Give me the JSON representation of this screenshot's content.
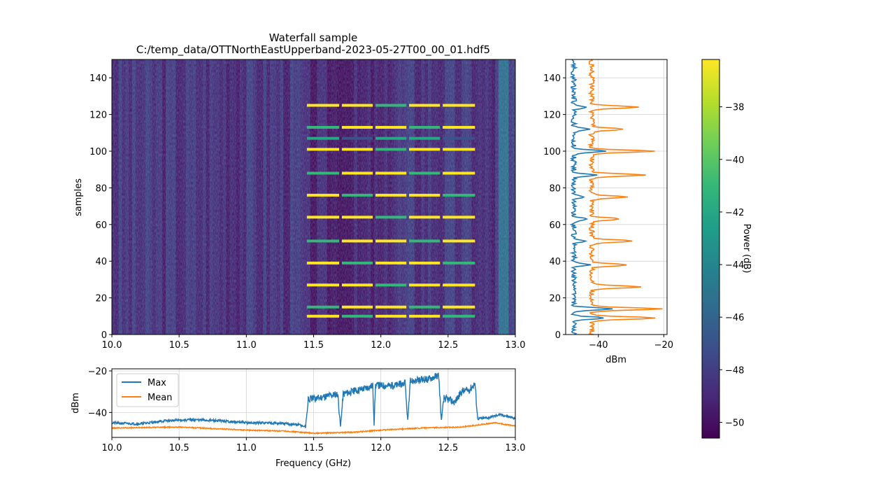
{
  "figure": {
    "title_line1": "Waterfall sample",
    "title_line2": "C:/temp_data/OTTNorthEastUpperband-2023-05-27T00_00_01.hdf5"
  },
  "colors": {
    "max": "#1f77b4",
    "mean": "#ff7f0e",
    "grid": "#d3d3d3",
    "viridis": [
      "#440154",
      "#482878",
      "#3e4a89",
      "#31688e",
      "#26828e",
      "#1f9e89",
      "#35b779",
      "#6ece58",
      "#b5de2b",
      "#fde725"
    ]
  },
  "chart_data": [
    {
      "id": "waterfall",
      "type": "heatmap",
      "xlabel": "",
      "ylabel": "samples",
      "xlim": [
        10.0,
        13.0
      ],
      "ylim": [
        0,
        150
      ],
      "xticks": [
        "10.0",
        "10.5",
        "11.0",
        "11.5",
        "12.0",
        "12.5",
        "13.0"
      ],
      "yticks": [
        "0",
        "20",
        "40",
        "60",
        "80",
        "100",
        "120",
        "140"
      ],
      "background_level_db": -49,
      "signal_band_ghz": [
        11.45,
        12.7
      ],
      "burst_rows": [
        10,
        15,
        27,
        39,
        51,
        64,
        76,
        88,
        101,
        107,
        113,
        125
      ],
      "burst_level_db": -36,
      "edge_band_ghz": [
        12.85,
        12.95
      ],
      "edge_band_level_db": -45
    },
    {
      "id": "sample-profile",
      "type": "line",
      "xlabel": "dBm",
      "ylabel": "",
      "xlim": [
        -50,
        -19
      ],
      "ylim": [
        0,
        150
      ],
      "xticks": [
        "−40",
        "−20"
      ],
      "yticks": [
        "0",
        "20",
        "40",
        "60",
        "80",
        "100",
        "120",
        "140"
      ],
      "grid": true,
      "series": [
        {
          "name": "Max",
          "baseline": -47.5,
          "peaks": [
            [
              9,
              -38
            ],
            [
              14,
              -36
            ],
            [
              26,
              -47
            ],
            [
              38,
              -43
            ],
            [
              51,
              -44
            ],
            [
              63,
              -43
            ],
            [
              75,
              -45
            ],
            [
              87,
              -41
            ],
            [
              100,
              -38
            ],
            [
              112,
              -43
            ],
            [
              124,
              -44
            ]
          ]
        },
        {
          "name": "Mean",
          "baseline": -42,
          "peaks": [
            [
              9,
              -22
            ],
            [
              14,
              -21
            ],
            [
              26,
              -27
            ],
            [
              38,
              -31
            ],
            [
              51,
              -29
            ],
            [
              63,
              -33
            ],
            [
              75,
              -31
            ],
            [
              87,
              -26
            ],
            [
              100,
              -23
            ],
            [
              112,
              -32
            ],
            [
              124,
              -28
            ]
          ]
        }
      ]
    },
    {
      "id": "spectrum",
      "type": "line",
      "xlabel": "Frequency (GHz)",
      "ylabel": "dBm",
      "xlim": [
        10.0,
        13.0
      ],
      "ylim": [
        -52,
        -19
      ],
      "xticks": [
        "10.0",
        "10.5",
        "11.0",
        "11.5",
        "12.0",
        "12.5",
        "13.0"
      ],
      "yticks": [
        "−40",
        "−20"
      ],
      "grid": true,
      "legend_position": "upper-left",
      "series": [
        {
          "name": "Max",
          "points": [
            [
              10.0,
              -45
            ],
            [
              10.2,
              -45.5
            ],
            [
              10.4,
              -44
            ],
            [
              10.6,
              -43.5
            ],
            [
              10.8,
              -44
            ],
            [
              11.0,
              -45
            ],
            [
              11.2,
              -45
            ],
            [
              11.4,
              -46
            ],
            [
              11.44,
              -47
            ],
            [
              11.46,
              -34
            ],
            [
              11.6,
              -32
            ],
            [
              11.68,
              -31
            ],
            [
              11.7,
              -47
            ],
            [
              11.72,
              -31
            ],
            [
              11.9,
              -28
            ],
            [
              11.94,
              -27
            ],
            [
              11.95,
              -46
            ],
            [
              11.96,
              -27
            ],
            [
              12.1,
              -27
            ],
            [
              12.18,
              -26
            ],
            [
              12.2,
              -44
            ],
            [
              12.22,
              -25
            ],
            [
              12.35,
              -24
            ],
            [
              12.43,
              -22
            ],
            [
              12.45,
              -44
            ],
            [
              12.47,
              -33
            ],
            [
              12.55,
              -35
            ],
            [
              12.6,
              -30
            ],
            [
              12.66,
              -29
            ],
            [
              12.7,
              -26
            ],
            [
              12.72,
              -43
            ],
            [
              12.8,
              -42.5
            ],
            [
              12.88,
              -41
            ],
            [
              12.95,
              -42
            ],
            [
              13.0,
              -43
            ]
          ]
        },
        {
          "name": "Mean",
          "points": [
            [
              10.0,
              -47.5
            ],
            [
              10.5,
              -47
            ],
            [
              11.0,
              -48.5
            ],
            [
              11.3,
              -49
            ],
            [
              11.5,
              -50
            ],
            [
              11.8,
              -49.5
            ],
            [
              12.0,
              -48.5
            ],
            [
              12.3,
              -47.5
            ],
            [
              12.6,
              -47
            ],
            [
              12.85,
              -45
            ],
            [
              13.0,
              -46.5
            ]
          ]
        }
      ]
    },
    {
      "id": "colorbar",
      "type": "heatmap",
      "label": "Power (dB)",
      "range": [
        -50.6,
        -36.2
      ],
      "ticks": [
        "−38",
        "−40",
        "−42",
        "−44",
        "−46",
        "−48",
        "−50"
      ]
    }
  ]
}
